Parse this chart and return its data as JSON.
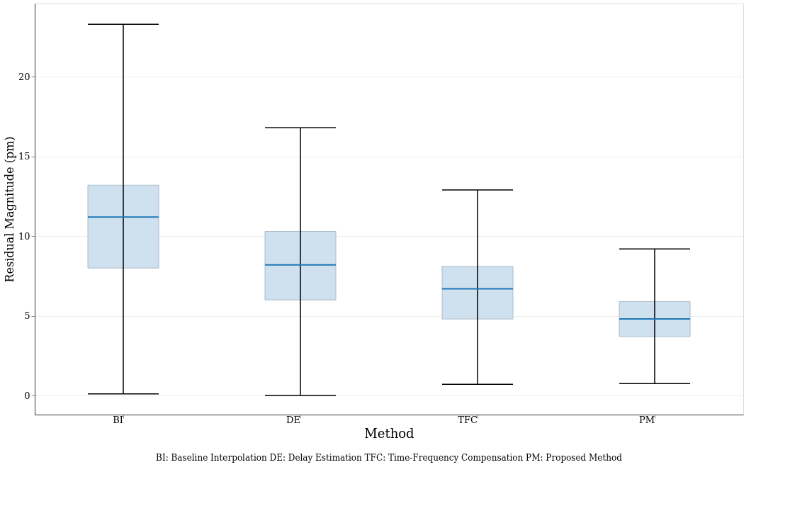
{
  "chart_data": {
    "type": "box",
    "xlabel": "Method",
    "ylabel": "Residual Magnitude (pm)",
    "categories": [
      "BI",
      "DE",
      "TFC",
      "PM"
    ],
    "boxes": [
      {
        "low": 0.1,
        "q1": 8.0,
        "median": 11.2,
        "q3": 13.2,
        "high": 23.3
      },
      {
        "low": 0.0,
        "q1": 6.0,
        "median": 8.2,
        "q3": 10.3,
        "high": 16.8
      },
      {
        "low": 0.7,
        "q1": 4.8,
        "median": 6.7,
        "q3": 8.1,
        "high": 12.9
      },
      {
        "low": 0.75,
        "q1": 3.7,
        "median": 4.8,
        "q3": 5.9,
        "high": 9.2
      }
    ],
    "color": "#cfe0ee",
    "ylim": [
      -1.2,
      24.6
    ],
    "yticks": [
      0,
      5,
      10,
      15,
      20
    ],
    "grid": "y",
    "annotations": [
      "BI: Baseline Interpolation   DE: Delay Estimation   TFC: Time-Frequency Compensation   PM: Proposed Method"
    ]
  }
}
